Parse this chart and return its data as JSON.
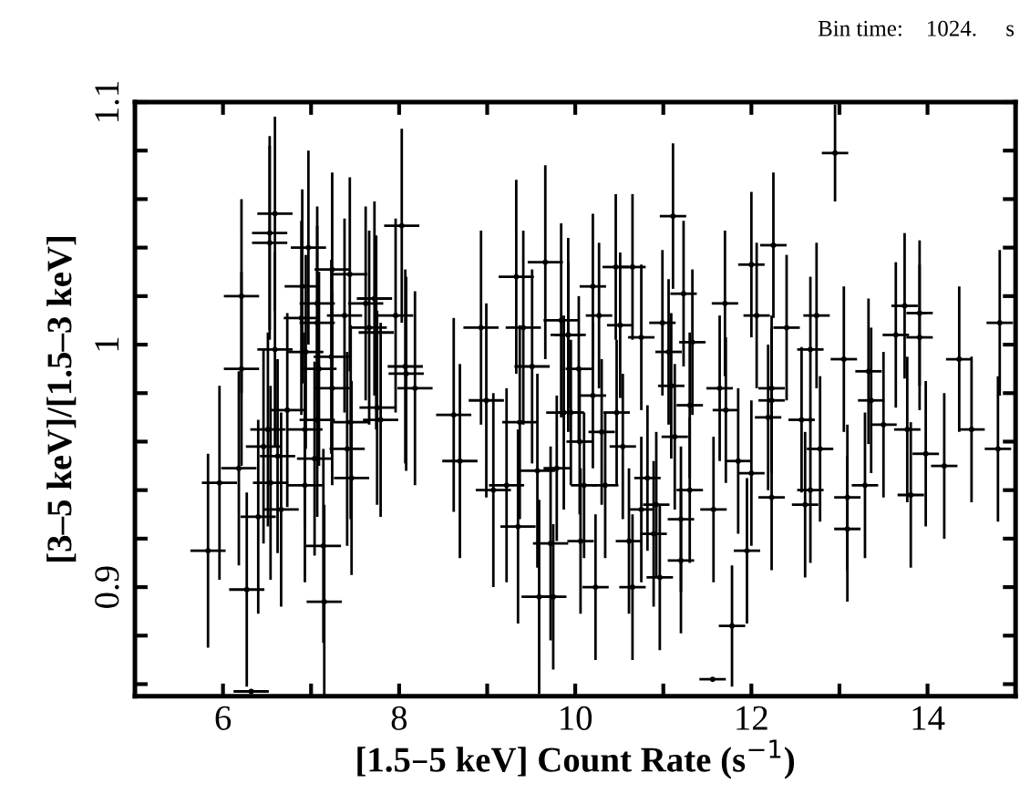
{
  "chart_data": {
    "type": "scatter",
    "xlabel": "[1.5–5 keV] Count Rate (s$^{−1}$)",
    "ylabel": "[3–5 keV]/[1.5–3 keV]",
    "annotations": [
      "Bin time:    1024.     s"
    ],
    "marker": "none",
    "grid": false,
    "legend": false,
    "xlim": [
      5,
      15
    ],
    "ylim": [
      0.855,
      1.1
    ],
    "xticks": [
      6,
      {
        "value": 7,
        "label": null
      },
      8,
      {
        "value": 9,
        "label": null
      },
      10,
      {
        "value": 11,
        "label": null
      },
      12,
      {
        "value": 13,
        "label": null
      },
      14
    ],
    "yticks": [
      {
        "value": 0.86,
        "label": null
      },
      {
        "value": 0.88,
        "label": null
      },
      0.9,
      {
        "value": 0.92,
        "label": null
      },
      {
        "value": 0.94,
        "label": null
      },
      {
        "value": 0.96,
        "label": null
      },
      {
        "value": 0.98,
        "label": null
      },
      1,
      {
        "value": 1.02,
        "label": null
      },
      {
        "value": 1.04,
        "label": null
      },
      {
        "value": 1.06,
        "label": null
      },
      {
        "value": 1.08,
        "label": null
      },
      1.1
    ],
    "series": [
      {
        "color": "#000000",
        "x": [
          5.83,
          5.96,
          6.18,
          6.21,
          6.21,
          6.27,
          6.32,
          6.4,
          6.46,
          6.51,
          6.53,
          6.53,
          6.59,
          6.59,
          6.54,
          6.62,
          6.66,
          6.73,
          6.9,
          6.89,
          6.94,
          6.93,
          6.97,
          7.07,
          7.07,
          7.09,
          7.07,
          7.04,
          6.93,
          7.14,
          7.15,
          7.23,
          7.24,
          7.24,
          7.38,
          7.44,
          7.45,
          7.41,
          7.46,
          7.62,
          7.66,
          7.72,
          7.75,
          7.79,
          7.74,
          8.03,
          7.96,
          8.07,
          8.08,
          8.18,
          8.62,
          8.69,
          8.99,
          9.07,
          8.93,
          9.22,
          9.33,
          9.35,
          9.37,
          9.41,
          9.51,
          9.57,
          9.59,
          9.66,
          9.72,
          9.84,
          9.92,
          9.87,
          12.95,
          11.11,
          10.46,
          10.2,
          10.65,
          12.0,
          12.25,
          11.7,
          11.23,
          10.99,
          10.27,
          9.92,
          10.51,
          10.75,
          11.06,
          11.33,
          12.06,
          12.4,
          12.74,
          12.67,
          13.05,
          13.33,
          13.36,
          13.74,
          13.91,
          13.91,
          13.64,
          14.36,
          14.82,
          14.8,
          14.5,
          14.19,
          13.98,
          13.77,
          13.81,
          13.5,
          13.29,
          13.09,
          13.09,
          12.78,
          12.67,
          12.61,
          12.57,
          12.23,
          12.23,
          12.19,
          12.23,
          12.0,
          11.95,
          11.78,
          11.56,
          11.64,
          11.71,
          11.57,
          11.85,
          11.3,
          11.3,
          11.2,
          11.2,
          11.13,
          11.09,
          10.96,
          10.89,
          10.92,
          10.82,
          10.75,
          10.65,
          10.61,
          10.54,
          10.47,
          10.34,
          10.3,
          10.23,
          10.2,
          10.1,
          10.05,
          9.95,
          10.04,
          9.79,
          9.75,
          10.06
        ],
        "values": [
          0.915,
          0.943,
          0.949,
          1.02,
          0.99,
          0.899,
          0.857,
          0.929,
          0.958,
          0.965,
          1.046,
          1.042,
          1.054,
          0.998,
          0.943,
          0.954,
          0.932,
          0.973,
          1.024,
          1.011,
          0.997,
          0.965,
          1.04,
          1.017,
          1.009,
          0.99,
          0.969,
          0.953,
          0.942,
          0.917,
          0.894,
          0.995,
          0.982,
          1.031,
          1.012,
          1.029,
          0.968,
          0.957,
          0.945,
          1.017,
          1.007,
          1.019,
          0.974,
          0.969,
          1.005,
          1.049,
          1.012,
          0.991,
          0.988,
          0.982,
          0.971,
          0.952,
          0.977,
          0.94,
          1.007,
          0.942,
          1.028,
          0.925,
          0.968,
          1.007,
          0.991,
          0.948,
          0.896,
          1.034,
          0.918,
          1.01,
          1.004,
          0.972,
          1.079,
          1.053,
          1.032,
          1.024,
          1.032,
          1.033,
          1.041,
          1.017,
          1.021,
          1.009,
          1.012,
          1.004,
          1.008,
          1.003,
          0.997,
          1.001,
          1.012,
          1.007,
          1.012,
          0.998,
          0.994,
          0.989,
          0.977,
          1.016,
          1.003,
          1.013,
          1.004,
          0.994,
          1.009,
          0.957,
          0.965,
          0.95,
          0.955,
          0.965,
          0.938,
          0.967,
          0.942,
          0.937,
          0.924,
          0.957,
          0.94,
          0.934,
          0.969,
          0.982,
          0.977,
          0.97,
          0.937,
          0.947,
          0.915,
          0.884,
          0.862,
          0.982,
          0.973,
          0.932,
          0.952,
          0.975,
          0.94,
          0.928,
          0.911,
          0.962,
          0.983,
          0.904,
          0.922,
          0.934,
          0.945,
          0.932,
          0.9,
          0.919,
          0.958,
          0.972,
          0.942,
          0.964,
          0.9,
          0.979,
          0.942,
          0.96,
          0.972,
          0.99,
          0.949,
          0.896,
          0.919
        ],
        "errors": [
          0.04,
          0.04,
          0.04,
          0.04,
          0.04,
          0.04,
          null,
          0.04,
          0.04,
          0.04,
          0.04,
          0.04,
          0.04,
          0.04,
          0.04,
          0.04,
          0.04,
          0.04,
          0.04,
          0.04,
          0.04,
          0.04,
          0.04,
          0.04,
          0.04,
          0.04,
          0.04,
          0.04,
          0.04,
          0.04,
          0.04,
          0.04,
          0.04,
          0.04,
          0.04,
          0.04,
          0.04,
          0.04,
          0.04,
          0.04,
          0.04,
          0.04,
          0.04,
          0.04,
          0.04,
          0.04,
          0.04,
          0.04,
          0.04,
          0.04,
          0.04,
          0.04,
          0.04,
          0.04,
          0.04,
          0.04,
          0.04,
          0.04,
          0.04,
          0.04,
          0.04,
          0.04,
          0.04,
          0.04,
          0.04,
          0.04,
          0.04,
          0.04,
          0.02,
          0.03,
          0.03,
          0.03,
          0.03,
          0.03,
          0.03,
          0.03,
          0.03,
          0.03,
          0.03,
          0.03,
          0.03,
          0.03,
          0.03,
          0.03,
          0.03,
          0.03,
          0.03,
          0.03,
          0.03,
          0.03,
          0.03,
          0.03,
          0.03,
          0.03,
          0.03,
          0.03,
          0.03,
          0.03,
          0.03,
          0.03,
          0.03,
          0.03,
          0.03,
          0.03,
          0.03,
          0.03,
          0.03,
          0.03,
          0.03,
          0.03,
          0.03,
          0.03,
          0.03,
          0.03,
          0.03,
          0.03,
          0.03,
          0.025,
          null,
          0.03,
          0.03,
          0.03,
          0.03,
          0.03,
          0.03,
          0.03,
          0.03,
          0.03,
          0.03,
          0.03,
          0.03,
          0.03,
          0.03,
          0.03,
          0.03,
          0.03,
          0.03,
          0.03,
          0.03,
          0.03,
          0.03,
          0.03,
          0.03,
          0.03,
          0.03,
          0.03,
          0.03,
          0.03,
          0.03
        ],
        "xerrors": [
          0.2,
          0.2,
          0.2,
          0.2,
          0.2,
          0.2,
          0.2,
          0.2,
          0.2,
          0.2,
          0.2,
          0.2,
          0.2,
          0.2,
          0.2,
          0.2,
          0.2,
          0.2,
          0.2,
          0.2,
          0.2,
          0.2,
          0.2,
          0.2,
          0.2,
          0.2,
          0.2,
          0.2,
          0.2,
          0.2,
          0.2,
          0.2,
          0.2,
          0.2,
          0.2,
          0.2,
          0.2,
          0.2,
          0.2,
          0.2,
          0.2,
          0.2,
          0.2,
          0.2,
          0.2,
          0.2,
          0.2,
          0.2,
          0.2,
          0.2,
          0.2,
          0.2,
          0.2,
          0.2,
          0.2,
          0.2,
          0.2,
          0.2,
          0.2,
          0.2,
          0.2,
          0.2,
          0.2,
          0.2,
          0.2,
          0.2,
          0.2,
          0.2,
          0.15,
          0.15,
          0.15,
          0.15,
          0.15,
          0.15,
          0.15,
          0.15,
          0.15,
          0.15,
          0.15,
          0.15,
          0.15,
          0.15,
          0.15,
          0.15,
          0.15,
          0.15,
          0.15,
          0.15,
          0.15,
          0.15,
          0.15,
          0.15,
          0.15,
          0.15,
          0.15,
          0.15,
          0.15,
          0.15,
          0.15,
          0.15,
          0.15,
          0.15,
          0.15,
          0.15,
          0.15,
          0.15,
          0.15,
          0.15,
          0.15,
          0.15,
          0.15,
          0.15,
          0.15,
          0.15,
          0.15,
          0.15,
          0.15,
          0.15,
          0.15,
          0.15,
          0.15,
          0.15,
          0.15,
          0.15,
          0.15,
          0.15,
          0.15,
          0.15,
          0.15,
          0.15,
          0.15,
          0.15,
          0.15,
          0.15,
          0.15,
          0.15,
          0.15,
          0.15,
          0.15,
          0.15,
          0.15,
          0.15,
          0.15,
          0.15,
          0.15,
          0.15,
          0.15,
          0.15,
          0.15
        ]
      }
    ]
  }
}
